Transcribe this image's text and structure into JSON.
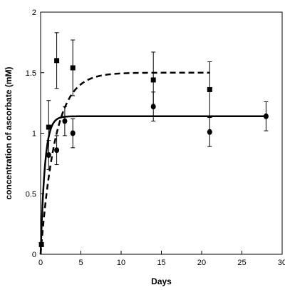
{
  "chart_data": {
    "type": "scatter",
    "xlabel": "Days",
    "ylabel": "concentration of ascorbate (mM)",
    "xlim": [
      0,
      30
    ],
    "ylim": [
      0,
      2
    ],
    "xticks": [
      "0",
      "5",
      "10",
      "15",
      "20",
      "25",
      "30"
    ],
    "yticks": [
      "0",
      "0.5",
      "1",
      "1.5",
      "2"
    ],
    "grid": false,
    "series": [
      {
        "marker": "square",
        "line": "dashed",
        "color": "#000000",
        "points": [
          {
            "x": 0.1,
            "y": 0.08,
            "err": 0
          },
          {
            "x": 1,
            "y": 1.05,
            "err": 0.22
          },
          {
            "x": 2,
            "y": 1.6,
            "err": 0.23
          },
          {
            "x": 4,
            "y": 1.54,
            "err": 0.23
          },
          {
            "x": 14,
            "y": 1.44,
            "err": 0.23
          },
          {
            "x": 21,
            "y": 1.36,
            "err": 0.23
          }
        ],
        "fit": {
          "ymax": 1.5,
          "k": 0.55,
          "x_end": 21
        }
      },
      {
        "marker": "circle",
        "line": "solid",
        "color": "#000000",
        "points": [
          {
            "x": 1,
            "y": 0.82,
            "err": 0.12
          },
          {
            "x": 2,
            "y": 0.86,
            "err": 0.12
          },
          {
            "x": 3,
            "y": 1.1,
            "err": 0.12
          },
          {
            "x": 4,
            "y": 1.0,
            "err": 0.12
          },
          {
            "x": 14,
            "y": 1.22,
            "err": 0.12
          },
          {
            "x": 21,
            "y": 1.01,
            "err": 0.12
          },
          {
            "x": 28,
            "y": 1.14,
            "err": 0.12
          }
        ],
        "fit": {
          "ymax": 1.14,
          "k": 1.9,
          "x_end": 28
        }
      }
    ]
  }
}
